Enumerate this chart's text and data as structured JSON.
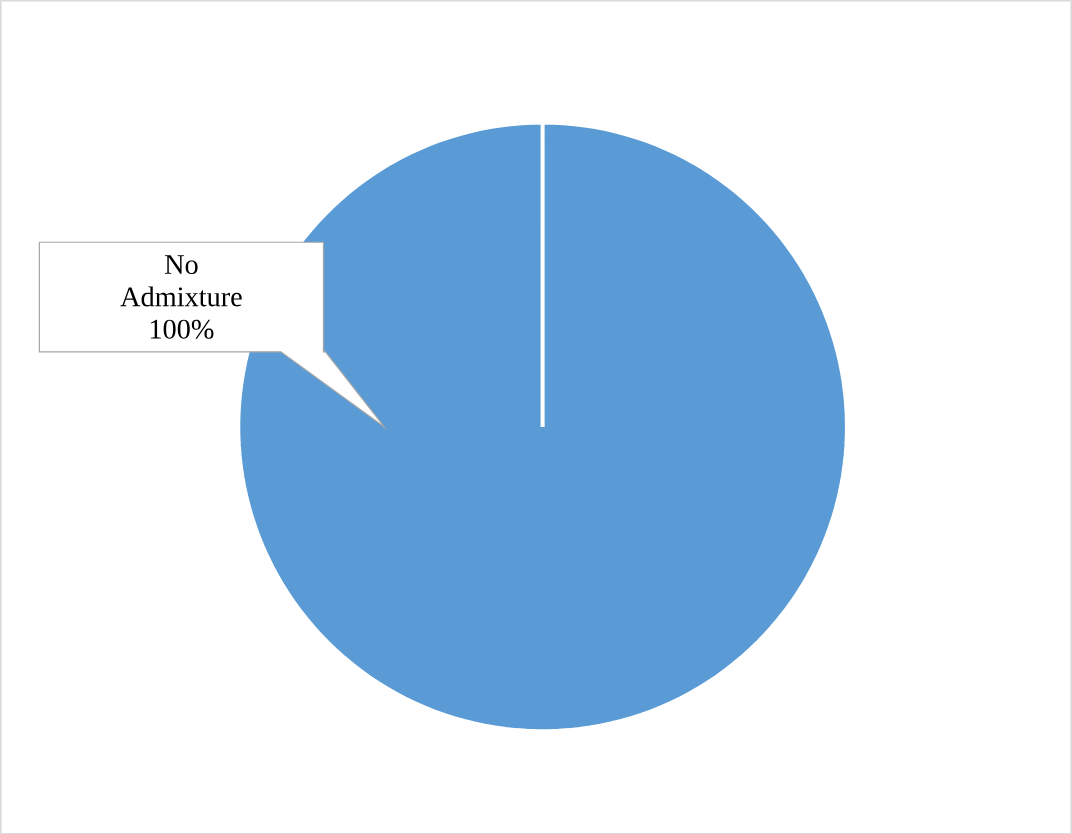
{
  "chart_data": {
    "type": "pie",
    "categories": [
      "No Admixture"
    ],
    "values": [
      100
    ],
    "colors": [
      "#5b9bd5"
    ],
    "value_labels": [
      "100%"
    ]
  }
}
